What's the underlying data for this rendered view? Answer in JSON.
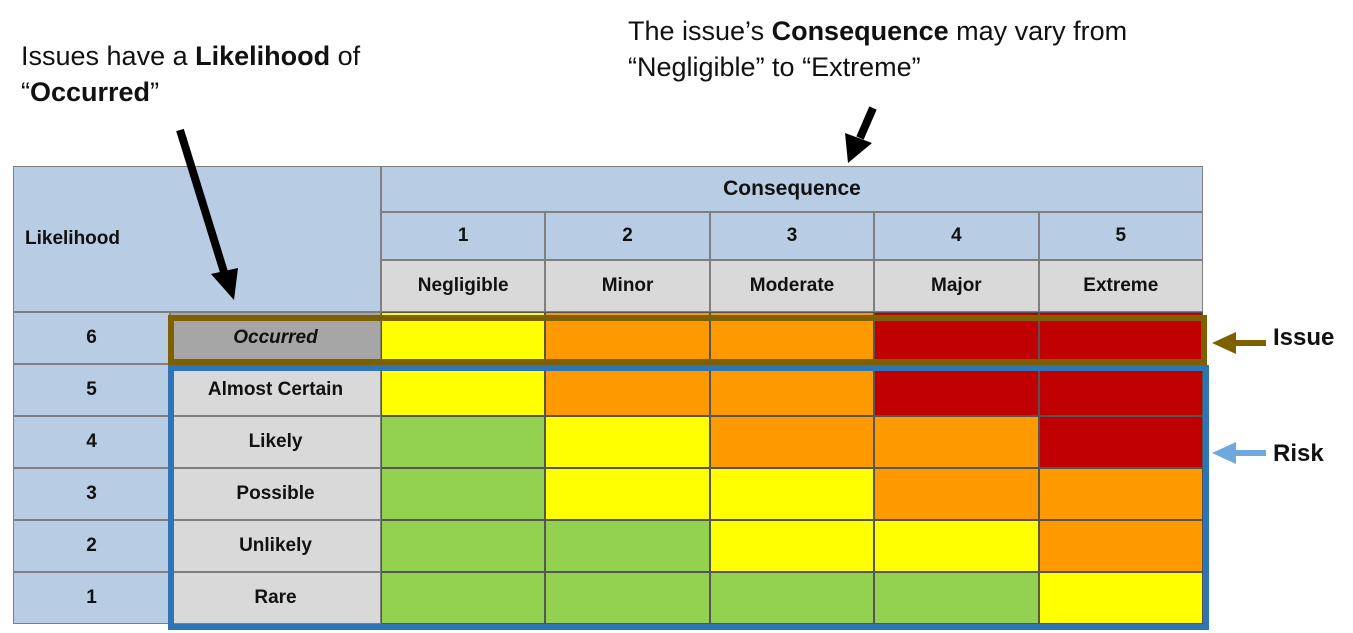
{
  "notes": {
    "left_line1_pre": "Issues have a ",
    "left_line1_bold": "Likelihood",
    "left_line1_post": " of",
    "left_line2_pre": "“",
    "left_line2_bold": "Occurred",
    "left_line2_post": "”",
    "top_line1_pre": "The issue’s ",
    "top_line1_bold": "Consequence",
    "top_line1_post": " may vary from",
    "top_line2": "“Negligible” to “Extreme”"
  },
  "matrix": {
    "likelihood_header": "Likelihood",
    "consequence_header": "Consequence",
    "consequence_numbers": [
      "1",
      "2",
      "3",
      "4",
      "5"
    ],
    "consequence_labels": [
      "Negligible",
      "Minor",
      "Moderate",
      "Major",
      "Extreme"
    ],
    "rows": [
      {
        "num": "6",
        "label": "Occurred",
        "levels": [
          "yellow",
          "orange",
          "orange",
          "red",
          "red"
        ]
      },
      {
        "num": "5",
        "label": "Almost Certain",
        "levels": [
          "yellow",
          "orange",
          "orange",
          "red",
          "red"
        ]
      },
      {
        "num": "4",
        "label": "Likely",
        "levels": [
          "green",
          "yellow",
          "orange",
          "orange",
          "red"
        ]
      },
      {
        "num": "3",
        "label": "Possible",
        "levels": [
          "green",
          "yellow",
          "yellow",
          "orange",
          "orange"
        ]
      },
      {
        "num": "2",
        "label": "Unlikely",
        "levels": [
          "green",
          "green",
          "yellow",
          "yellow",
          "orange"
        ]
      },
      {
        "num": "1",
        "label": "Rare",
        "levels": [
          "green",
          "green",
          "green",
          "green",
          "yellow"
        ]
      }
    ]
  },
  "colors": {
    "green": "#92d050",
    "yellow": "#ffff00",
    "orange": "#ff9900",
    "red": "#c00000",
    "occurred_bg": "#a6a6a6",
    "issue_frame": "#7f6000",
    "risk_frame": "#2e75b6",
    "issue_arrow": "#7f6000",
    "risk_arrow": "#6fa8dc"
  },
  "side_labels": {
    "issue": "Issue",
    "risk": "Risk"
  }
}
